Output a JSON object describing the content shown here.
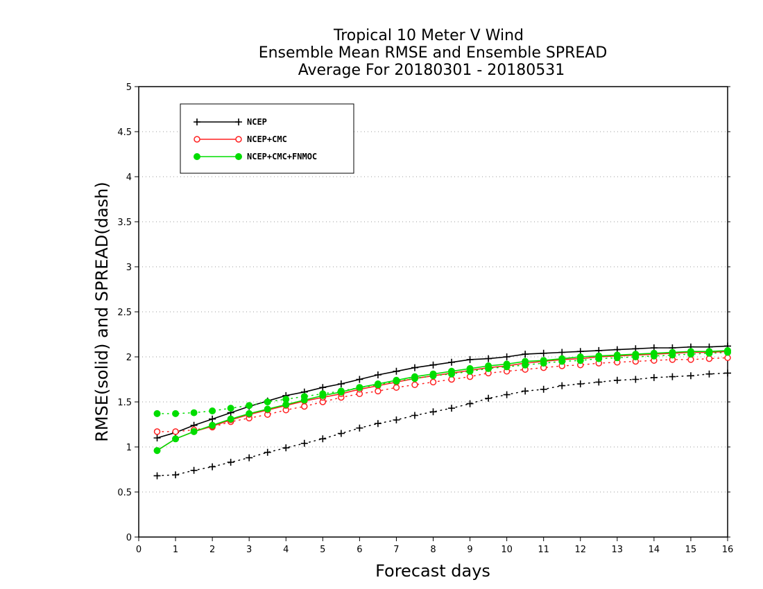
{
  "chart_data": {
    "type": "line",
    "title": [
      "Tropical 10 Meter V Wind",
      "Ensemble Mean RMSE and Ensemble SPREAD",
      "Average For 20180301 - 20180531"
    ],
    "xlabel": "Forecast days",
    "ylabel": "RMSE(solid) and SPREAD(dash)",
    "xlim": [
      0,
      16
    ],
    "ylim": [
      0,
      5
    ],
    "xticks": [
      "0",
      "1",
      "2",
      "3",
      "4",
      "5",
      "6",
      "7",
      "8",
      "9",
      "10",
      "11",
      "12",
      "13",
      "14",
      "15",
      "16"
    ],
    "yticks": [
      "0",
      "0.5",
      "1",
      "1.5",
      "2",
      "2.5",
      "3",
      "3.5",
      "4",
      "4.5",
      "5"
    ],
    "grid": "horizontal dotted",
    "legend_position": "top-left",
    "x": [
      0.5,
      1,
      1.5,
      2,
      2.5,
      3,
      3.5,
      4,
      4.5,
      5,
      5.5,
      6,
      6.5,
      7,
      7.5,
      8,
      8.5,
      9,
      9.5,
      10,
      10.5,
      11,
      11.5,
      12,
      12.5,
      13,
      13.5,
      14,
      14.5,
      15,
      15.5,
      16
    ],
    "series": [
      {
        "name": "NCEP",
        "color": "#000000",
        "marker": "plus",
        "rmse": [
          1.1,
          1.16,
          1.24,
          1.31,
          1.38,
          1.45,
          1.51,
          1.57,
          1.61,
          1.66,
          1.7,
          1.75,
          1.8,
          1.84,
          1.88,
          1.91,
          1.94,
          1.97,
          1.98,
          2.0,
          2.03,
          2.04,
          2.05,
          2.06,
          2.07,
          2.08,
          2.09,
          2.1,
          2.1,
          2.11,
          2.11,
          2.12
        ],
        "spread": [
          0.68,
          0.69,
          0.74,
          0.78,
          0.83,
          0.88,
          0.94,
          0.99,
          1.04,
          1.09,
          1.15,
          1.21,
          1.26,
          1.3,
          1.35,
          1.39,
          1.43,
          1.48,
          1.54,
          1.58,
          1.62,
          1.64,
          1.68,
          1.7,
          1.72,
          1.74,
          1.75,
          1.77,
          1.78,
          1.79,
          1.81,
          1.82
        ]
      },
      {
        "name": "NCEP+CMC",
        "color": "#ff2020",
        "marker": "open-circle",
        "rmse": [
          0.96,
          1.09,
          1.17,
          1.23,
          1.3,
          1.36,
          1.41,
          1.46,
          1.51,
          1.55,
          1.59,
          1.64,
          1.68,
          1.72,
          1.76,
          1.79,
          1.82,
          1.85,
          1.88,
          1.9,
          1.93,
          1.95,
          1.97,
          1.98,
          2.0,
          2.01,
          2.02,
          2.03,
          2.04,
          2.05,
          2.05,
          2.06
        ],
        "spread": [
          1.17,
          1.17,
          1.19,
          1.22,
          1.28,
          1.32,
          1.36,
          1.41,
          1.45,
          1.5,
          1.55,
          1.59,
          1.62,
          1.66,
          1.69,
          1.72,
          1.75,
          1.78,
          1.82,
          1.84,
          1.86,
          1.88,
          1.9,
          1.91,
          1.93,
          1.94,
          1.95,
          1.96,
          1.97,
          1.97,
          1.98,
          1.99
        ]
      },
      {
        "name": "NCEP+CMC+FNMOC",
        "color": "#00dd00",
        "marker": "filled-circle",
        "rmse": [
          0.96,
          1.09,
          1.17,
          1.24,
          1.31,
          1.37,
          1.42,
          1.47,
          1.52,
          1.57,
          1.61,
          1.66,
          1.7,
          1.74,
          1.78,
          1.81,
          1.84,
          1.87,
          1.9,
          1.92,
          1.95,
          1.96,
          1.98,
          2.0,
          2.01,
          2.02,
          2.03,
          2.04,
          2.05,
          2.06,
          2.06,
          2.07
        ],
        "spread": [
          1.37,
          1.37,
          1.38,
          1.4,
          1.43,
          1.46,
          1.5,
          1.53,
          1.56,
          1.59,
          1.62,
          1.66,
          1.69,
          1.73,
          1.76,
          1.79,
          1.81,
          1.84,
          1.87,
          1.89,
          1.91,
          1.93,
          1.95,
          1.96,
          1.98,
          1.99,
          2.0,
          2.01,
          2.02,
          2.03,
          2.04,
          2.05
        ]
      }
    ]
  }
}
